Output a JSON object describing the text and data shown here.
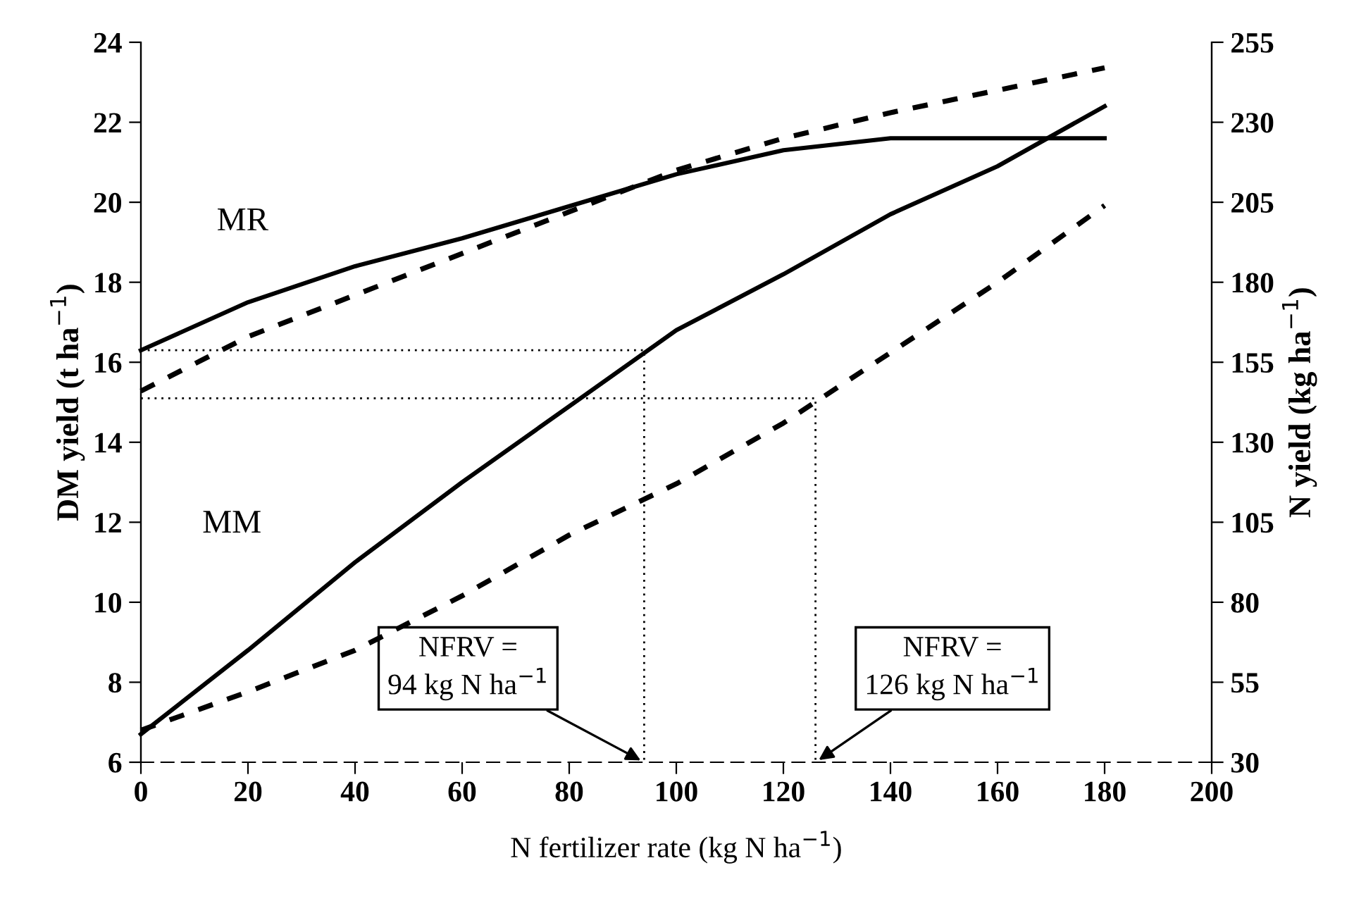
{
  "chart_data": {
    "type": "line",
    "xlabel": "N fertilizer rate (kg N ha$^{−1}$)",
    "ylabel": "DM yield (t ha$^{−1}$)",
    "y2label": "N yield (kg ha$^{−1}$)",
    "xlim": [
      0,
      200
    ],
    "xticks": [
      0,
      20,
      40,
      60,
      80,
      100,
      120,
      140,
      160,
      180,
      200
    ],
    "ylim": [
      6,
      24
    ],
    "yticks": [
      6,
      8,
      10,
      12,
      14,
      16,
      18,
      20,
      22,
      24
    ],
    "y2lim": [
      30,
      255
    ],
    "y2ticks": [
      30,
      55,
      80,
      105,
      130,
      155,
      180,
      205,
      230,
      255
    ],
    "grid": false,
    "series": [
      {
        "axis": "y",
        "line_style": "solid",
        "color": "#000000",
        "x": [
          0,
          20,
          40,
          60,
          80,
          100,
          120,
          140,
          160,
          180
        ],
        "values": [
          16.3,
          17.5,
          18.4,
          19.1,
          19.9,
          20.7,
          21.3,
          21.6,
          21.6,
          21.6
        ]
      },
      {
        "axis": "y",
        "line_style": "solid",
        "color": "#000000",
        "x": [
          0,
          20,
          40,
          60,
          80,
          100,
          120,
          140,
          160,
          180
        ],
        "values": [
          6.7,
          8.8,
          11.0,
          13.0,
          14.9,
          16.8,
          18.2,
          19.7,
          20.9,
          22.4
        ]
      },
      {
        "axis": "y2",
        "line_style": "dashed",
        "color": "#000000",
        "x": [
          0,
          20,
          40,
          60,
          80,
          100,
          120,
          140,
          160,
          180
        ],
        "values": [
          146,
          163,
          176,
          189,
          202,
          215,
          225,
          233,
          240,
          247
        ]
      },
      {
        "axis": "y2",
        "line_style": "dashed",
        "color": "#000000",
        "x": [
          0,
          20,
          40,
          60,
          80,
          100,
          120,
          140,
          160,
          180
        ],
        "values": [
          40,
          52,
          65,
          82,
          101,
          117,
          136,
          158,
          180,
          204
        ]
      },
      {
        "axis": "y",
        "line_style": "dotted",
        "color": "#000000",
        "x": [
          0,
          94,
          94
        ],
        "values": [
          16.3,
          16.3,
          6
        ]
      },
      {
        "axis": "y",
        "line_style": "dotted",
        "color": "#000000",
        "x": [
          0,
          126,
          126
        ],
        "values": [
          15.1,
          15.1,
          6
        ]
      }
    ],
    "annotations": [
      "MR",
      "MM",
      {
        "text": "NFRV =\n94 kg N ha$^{−1}$",
        "x": 94,
        "y": 6
      },
      {
        "text": "NFRV =\n126 kg N ha$^{−1}$",
        "x": 126,
        "y": 6
      }
    ]
  }
}
